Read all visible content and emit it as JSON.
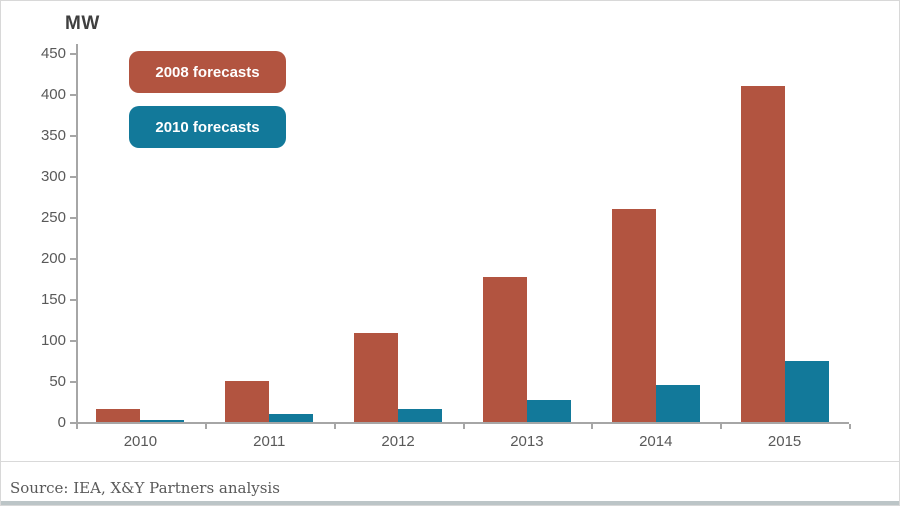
{
  "title": "MW",
  "source": "Source: IEA, X&Y Partners analysis",
  "legend": [
    {
      "label": "2008 forecasts",
      "color": "#b25440"
    },
    {
      "label": "2010 forecasts",
      "color": "#12799a"
    }
  ],
  "colors": {
    "series_2008": "#b25440",
    "series_2010": "#12799a",
    "axis": "#a6a6a6",
    "tick_text": "#595959",
    "divider": "#d9d9d9",
    "bottom_band": "#bcc5c7"
  },
  "chart_data": {
    "type": "bar",
    "title": "MW",
    "ylabel": "MW",
    "xlabel": "",
    "categories": [
      "2010",
      "2011",
      "2012",
      "2013",
      "2014",
      "2015"
    ],
    "series": [
      {
        "name": "2008 forecasts",
        "color": "#b25440",
        "values": [
          16,
          50,
          108,
          177,
          260,
          410
        ]
      },
      {
        "name": "2010 forecasts",
        "color": "#12799a",
        "values": [
          3,
          10,
          16,
          27,
          45,
          75
        ]
      }
    ],
    "ylim": [
      0,
      450
    ],
    "ytick_step": 50,
    "grid": false,
    "legend_position": "top-left"
  }
}
